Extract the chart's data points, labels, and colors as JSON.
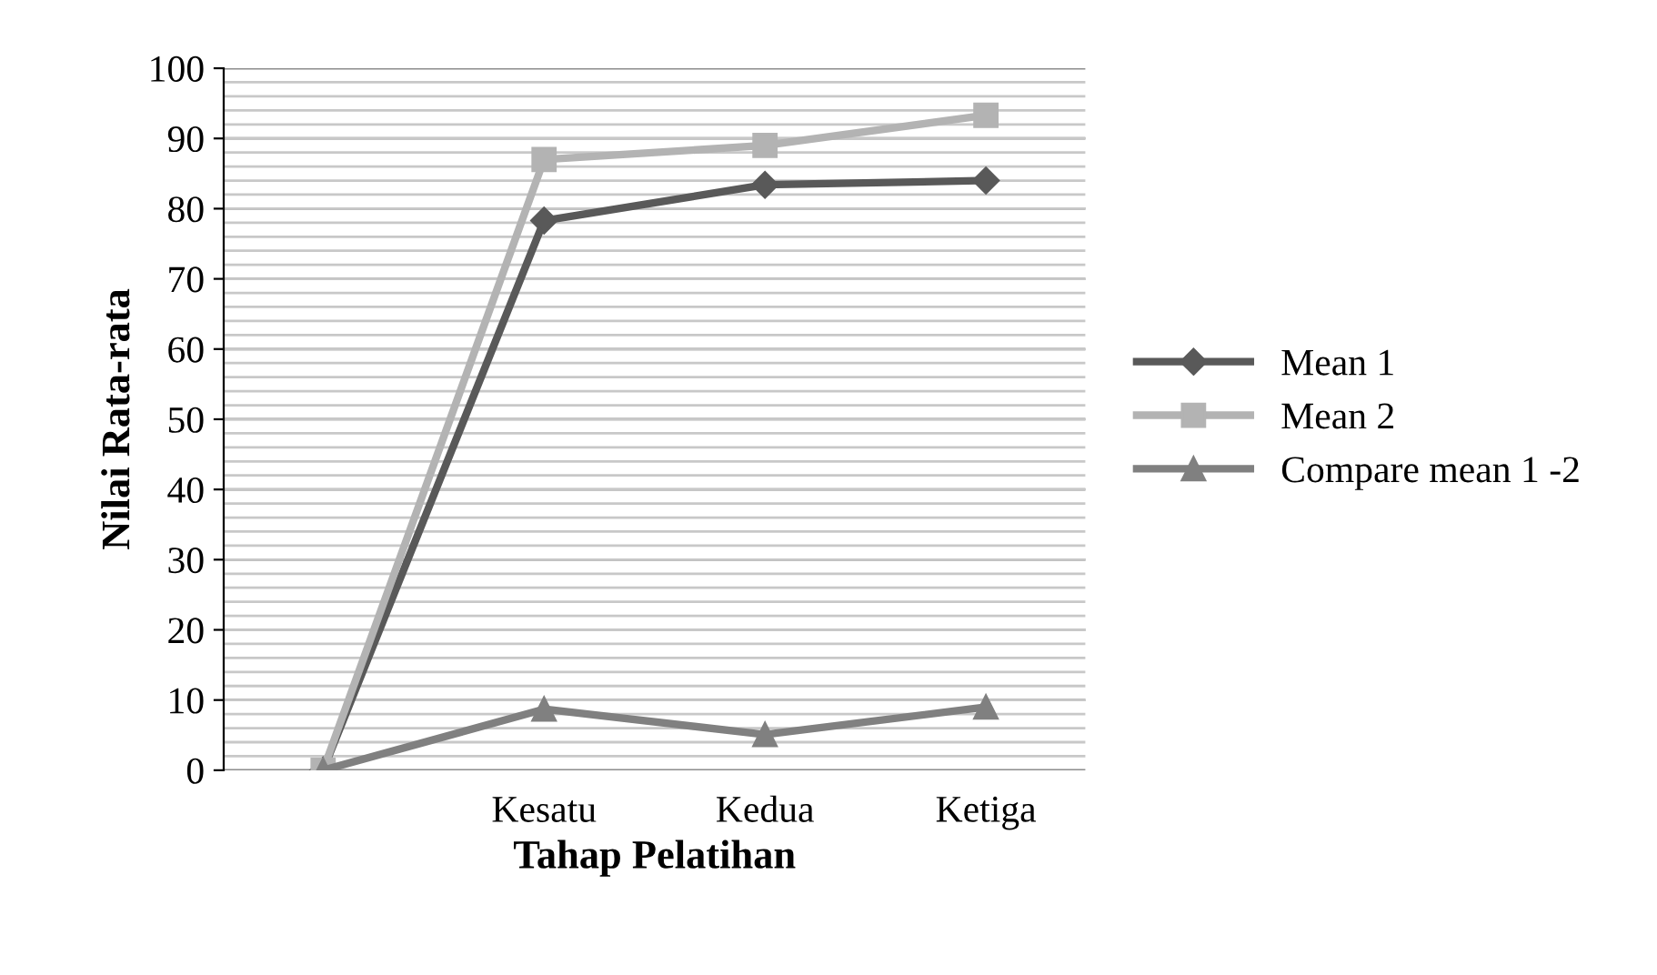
{
  "chart_data": {
    "type": "line",
    "xlabel": "Tahap Pelatihan",
    "ylabel": "Nilai Rata-rata",
    "categories": [
      null,
      "Kesatu",
      "Kedua",
      "Ketiga"
    ],
    "series": [
      {
        "name": "Mean 1",
        "color": "#595959",
        "marker": "diamond",
        "values": [
          0,
          78.3,
          83.4,
          84
        ]
      },
      {
        "name": "Mean 2",
        "color": "#b3b3b3",
        "marker": "square",
        "values": [
          0,
          87,
          89,
          93.3
        ]
      },
      {
        "name": "Compare mean 1 -2",
        "color": "#808080",
        "marker": "triangle",
        "values": [
          0,
          8.7,
          5.1,
          9
        ]
      }
    ],
    "ylim": [
      0,
      100
    ],
    "yticks": [
      0,
      10,
      20,
      30,
      40,
      50,
      60,
      70,
      80,
      90,
      100
    ],
    "grid": "y",
    "legend": "right",
    "line_style": "solid"
  }
}
